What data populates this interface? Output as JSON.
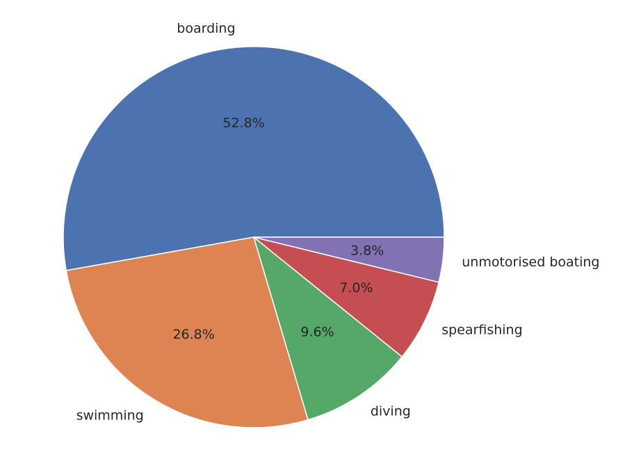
{
  "chart_data": {
    "type": "pie",
    "categories": [
      "boarding",
      "swimming",
      "diving",
      "spearfishing",
      "unmotorised boating"
    ],
    "values": [
      52.8,
      26.8,
      9.6,
      7.0,
      3.8
    ],
    "percent_labels": [
      "52.8%",
      "26.8%",
      "9.6%",
      "7.0%",
      "3.8%"
    ],
    "colors": [
      "#4c72b0",
      "#dd8452",
      "#55a868",
      "#c44e52",
      "#8172b3"
    ],
    "start_angle_deg": 0,
    "direction": "counterclockwise",
    "legend": "none"
  }
}
